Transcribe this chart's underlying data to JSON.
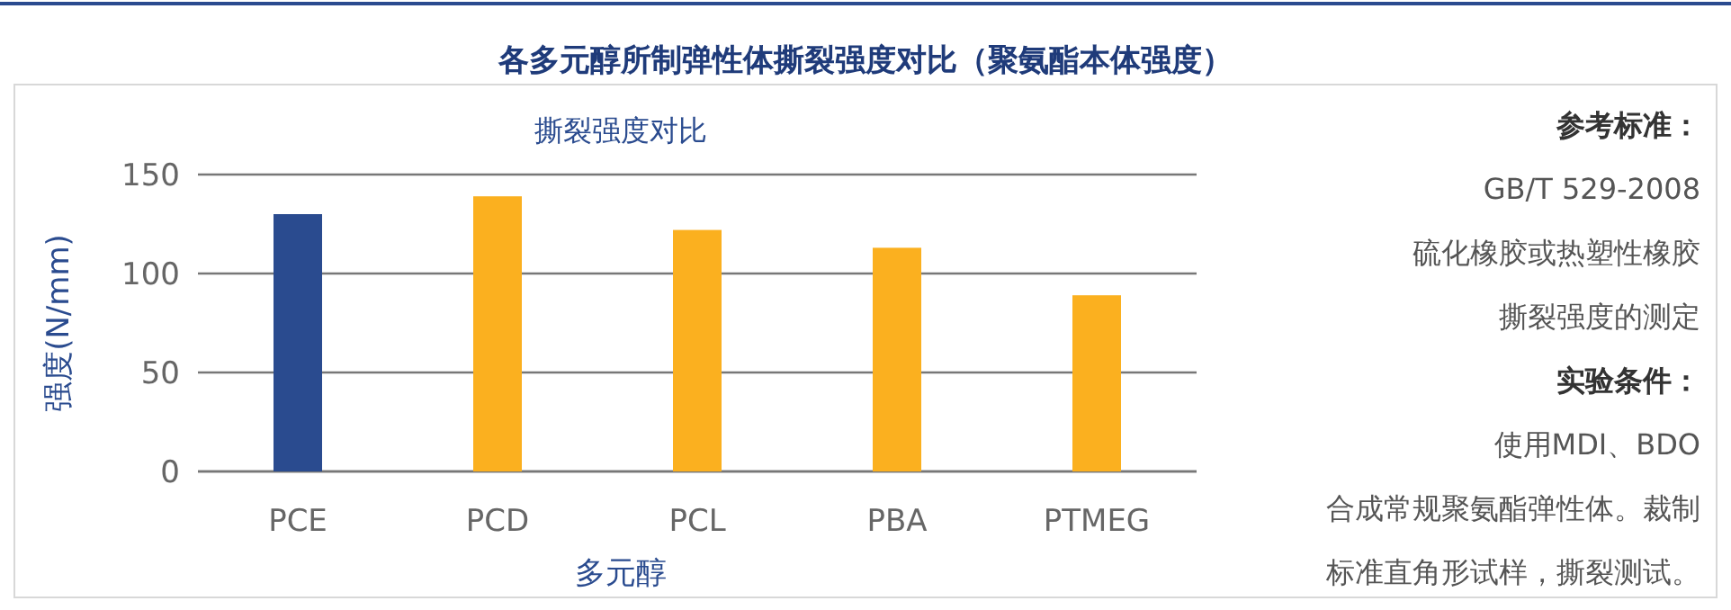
{
  "chart_data": {
    "type": "bar",
    "title": "各多元醇所制弹性体撕裂强度对比（聚氨酯本体强度）",
    "subtitle": "撕裂强度对比",
    "xlabel": "多元醇",
    "ylabel": "强度(N/mm)",
    "categories": [
      "PCE",
      "PCD",
      "PCL",
      "PBA",
      "PTMEG"
    ],
    "values": [
      130,
      139,
      122,
      113,
      89
    ],
    "colors": [
      "#2a4b8f",
      "#fbb01f",
      "#fbb01f",
      "#fbb01f",
      "#fbb01f"
    ],
    "ylim": [
      0,
      150
    ],
    "yticks": [
      0,
      50,
      100,
      150
    ],
    "grid": "y",
    "annotations": [
      "参考标准：",
      "GB/T 529-2008",
      "硫化橡胶或热塑性橡胶",
      "撕裂强度的测定",
      "实验条件：",
      "使用MDI、BDO",
      "合成常规聚氨酯弹性体。裁制",
      "标准直角形试样，撕裂测试。"
    ]
  }
}
